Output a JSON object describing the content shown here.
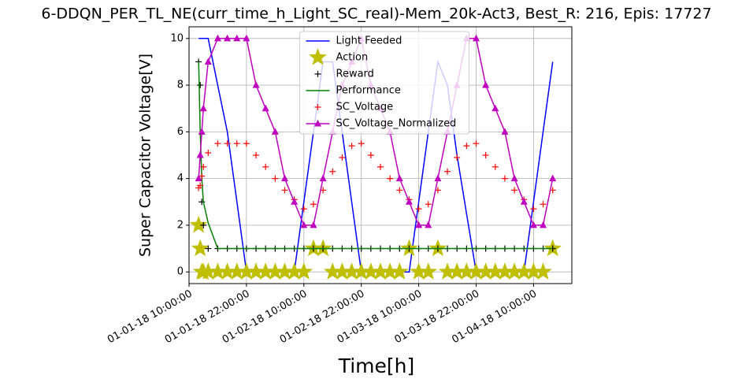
{
  "chart_data": {
    "type": "line",
    "title": "6-DDQN_PER_TL_NE(curr_time_h_Light_SC_real)-Mem_20k-Act3, Best_R: 216, Epis: 17727",
    "x_label": "Time[h]",
    "y_label": "Super Capacitor Voltage[V]",
    "x": [
      "01-01-18 12:00:00",
      "01-01-18 12:20:00",
      "01-01-18 12:40:00",
      "01-01-18 13:00:00",
      "01-01-18 14:00:00",
      "01-01-18 16:00:00",
      "01-01-18 18:00:00",
      "01-01-18 20:00:00",
      "01-01-18 22:00:00",
      "01-02-18 00:00:00",
      "01-02-18 02:00:00",
      "01-02-18 04:00:00",
      "01-02-18 06:00:00",
      "01-02-18 08:00:00",
      "01-02-18 10:00:00",
      "01-02-18 12:00:00",
      "01-02-18 14:00:00",
      "01-02-18 16:00:00",
      "01-02-18 18:00:00",
      "01-02-18 20:00:00",
      "01-02-18 22:00:00",
      "01-03-18 00:00:00",
      "01-03-18 02:00:00",
      "01-03-18 04:00:00",
      "01-03-18 06:00:00",
      "01-03-18 08:00:00",
      "01-03-18 10:00:00",
      "01-03-18 12:00:00",
      "01-03-18 14:00:00",
      "01-03-18 16:00:00",
      "01-03-18 18:00:00",
      "01-03-18 20:00:00",
      "01-03-18 22:00:00",
      "01-04-18 00:00:00",
      "01-04-18 02:00:00",
      "01-04-18 04:00:00",
      "01-04-18 06:00:00",
      "01-04-18 08:00:00",
      "01-04-18 10:00:00",
      "01-04-18 12:00:00",
      "01-04-18 14:00:00"
    ],
    "series": [
      {
        "name": "Light Feeded",
        "color": "#0000ff",
        "style": "line",
        "values": [
          10,
          10,
          10,
          10,
          10,
          8,
          6,
          3,
          0,
          0,
          0,
          0,
          0,
          0,
          3,
          6,
          9,
          9,
          6,
          3,
          0,
          0,
          0,
          0,
          0,
          0,
          3,
          6,
          9,
          8,
          5,
          2.5,
          0,
          0,
          0,
          0,
          0,
          0,
          3,
          6,
          9
        ]
      },
      {
        "name": "Action",
        "color": "#bfbf00",
        "style": "markers",
        "marker": "star",
        "values": [
          2,
          1,
          0,
          0,
          0,
          0,
          0,
          0,
          0,
          0,
          0,
          0,
          0,
          0,
          0,
          1,
          1,
          0,
          0,
          0,
          0,
          0,
          0,
          0,
          0,
          1,
          0,
          0,
          1,
          0,
          0,
          0,
          0,
          0,
          0,
          0,
          0,
          0,
          0,
          0,
          1
        ]
      },
      {
        "name": "Reward",
        "color": "#000000",
        "style": "markers",
        "marker": "plus",
        "values": [
          9,
          8,
          3,
          2,
          1,
          1,
          1,
          1,
          1,
          1,
          1,
          1,
          1,
          1,
          1,
          1,
          1,
          1,
          1,
          1,
          1,
          1,
          1,
          1,
          1,
          1,
          1,
          1,
          1,
          1,
          1,
          1,
          1,
          1,
          1,
          1,
          1,
          1,
          1,
          1,
          1
        ]
      },
      {
        "name": "Performance",
        "color": "#008000",
        "style": "line",
        "values": [
          9,
          6,
          4,
          3,
          2.1,
          1,
          1,
          1,
          1,
          1,
          1,
          1,
          1,
          1,
          1,
          1,
          1,
          1,
          1,
          1,
          1,
          1,
          1,
          1,
          1,
          1,
          1,
          1,
          1,
          1,
          1,
          1,
          1,
          1,
          1,
          1,
          1,
          1,
          1,
          1,
          1
        ]
      },
      {
        "name": "SC_Voltage",
        "color": "#ff0000",
        "style": "markers",
        "marker": "plus",
        "values": [
          3.6,
          3.7,
          4.1,
          4.5,
          5.1,
          5.5,
          5.5,
          5.5,
          5.5,
          5.0,
          4.5,
          4.0,
          3.5,
          3.1,
          2.7,
          2.9,
          3.5,
          4.3,
          4.9,
          5.4,
          5.5,
          5.0,
          4.5,
          4.0,
          3.5,
          3.1,
          2.7,
          2.9,
          3.5,
          4.3,
          4.9,
          5.4,
          5.5,
          5.0,
          4.5,
          4.0,
          3.5,
          3.1,
          2.7,
          2.9,
          3.5
        ]
      },
      {
        "name": "SC_Voltage_Normalized",
        "color": "#bf00bf",
        "style": "line+markers",
        "marker": "triangle",
        "values": [
          4,
          5,
          6,
          7,
          9,
          10,
          10,
          10,
          10,
          8,
          7,
          6,
          4,
          3,
          2,
          2,
          4,
          6,
          8,
          9,
          10,
          8,
          7,
          6,
          4,
          3,
          2,
          2,
          4,
          6,
          8,
          10,
          10,
          8,
          7,
          6,
          4,
          3,
          2,
          2,
          4
        ]
      }
    ],
    "xlim": [
      "01-01-18 10:00:00",
      "01-04-18 18:00:00"
    ],
    "xticks": [
      "01-01-18 10:00:00",
      "01-01-18 22:00:00",
      "01-02-18 10:00:00",
      "01-02-18 22:00:00",
      "01-03-18 10:00:00",
      "01-03-18 22:00:00",
      "01-04-18 10:00:00"
    ],
    "ylim": [
      -0.5,
      10.5
    ],
    "yticks": [
      0,
      2,
      4,
      6,
      8,
      10
    ],
    "grid": true,
    "legend": "upper center"
  }
}
